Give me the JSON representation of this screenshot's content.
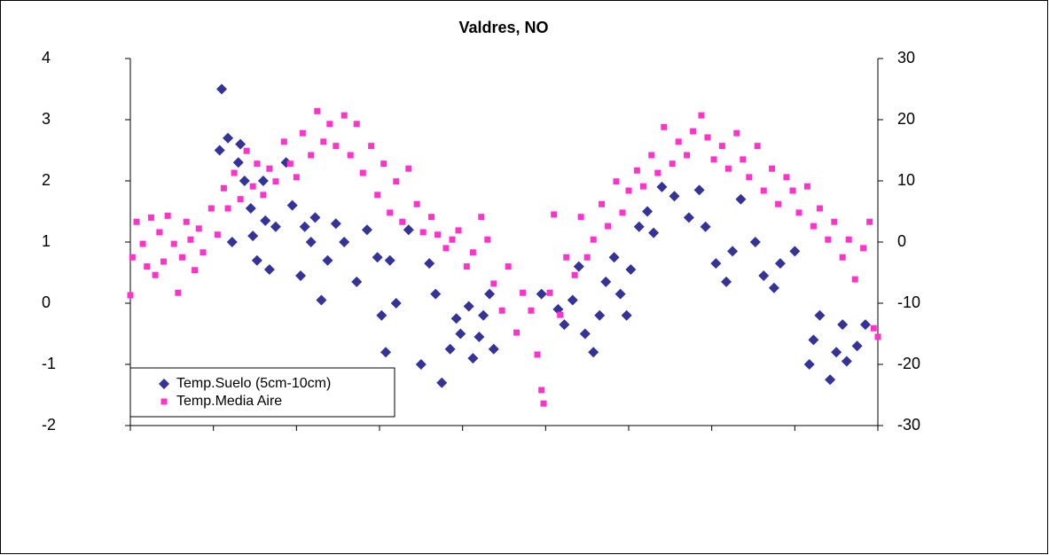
{
  "chart_data": {
    "type": "scatter",
    "title": "Valdres, NO",
    "xlim": [
      0,
      360
    ],
    "xticks": [
      0,
      40,
      80,
      120,
      160,
      200,
      240,
      280,
      320,
      360
    ],
    "ylim": [
      -2,
      4
    ],
    "yticks": [
      -2,
      -1,
      0,
      1,
      2,
      3,
      4
    ],
    "y2lim": [
      -30,
      30
    ],
    "y2ticks": [
      -30,
      -20,
      -10,
      0,
      10,
      20,
      30
    ],
    "legend": "lower left",
    "series": [
      {
        "name": "Temp.Suelo (5cm-10cm)",
        "color": "#333399",
        "marker": "diamond",
        "x": [
          43,
          44,
          47,
          49,
          52,
          53,
          55,
          58,
          59,
          61,
          64,
          65,
          67,
          70,
          75,
          78,
          82,
          84,
          87,
          89,
          92,
          95,
          99,
          103,
          109,
          114,
          119,
          121,
          123,
          125,
          128,
          134,
          140,
          144,
          147,
          150,
          154,
          157,
          159,
          163,
          165,
          168,
          170,
          173,
          175,
          198,
          206,
          209,
          213,
          216,
          219,
          223,
          226,
          229,
          233,
          236,
          239,
          241,
          245,
          249,
          252,
          256,
          262,
          269,
          274,
          277,
          282,
          287,
          290,
          294,
          301,
          305,
          310,
          313,
          320,
          327,
          329,
          332,
          337,
          340,
          343,
          345,
          350,
          354
        ],
        "values": [
          2.5,
          3.5,
          2.7,
          1.0,
          2.3,
          2.6,
          2.0,
          1.55,
          1.1,
          0.7,
          2.0,
          1.35,
          0.55,
          1.25,
          2.3,
          1.6,
          0.45,
          1.25,
          1.0,
          1.4,
          0.05,
          0.7,
          1.3,
          1.0,
          0.35,
          1.2,
          0.75,
          -0.2,
          -0.8,
          0.7,
          0.0,
          1.2,
          -1.0,
          0.65,
          0.15,
          -1.3,
          -0.75,
          -0.25,
          -0.5,
          -0.05,
          -0.9,
          -0.55,
          -0.2,
          0.15,
          -0.75,
          0.15,
          -0.1,
          -0.35,
          0.05,
          0.6,
          -0.5,
          -0.8,
          -0.2,
          0.35,
          0.75,
          0.15,
          -0.2,
          0.55,
          1.25,
          1.5,
          1.15,
          1.9,
          1.75,
          1.4,
          1.85,
          1.25,
          0.65,
          0.35,
          0.85,
          1.7,
          1.0,
          0.45,
          0.25,
          0.65,
          0.85,
          -1.0,
          -0.6,
          -0.2,
          -1.25,
          -0.8,
          -0.35,
          -0.95,
          -0.7,
          -0.35
        ]
      },
      {
        "name": "Temp.Media Aire",
        "color": "#ff33cc",
        "marker": "square",
        "axis": "y2",
        "x": [
          0,
          1,
          3,
          6,
          8,
          10,
          12,
          14,
          16,
          18,
          21,
          23,
          25,
          27,
          29,
          31,
          33,
          35,
          39,
          42,
          45,
          47,
          50,
          53,
          56,
          59,
          61,
          64,
          67,
          70,
          74,
          77,
          80,
          83,
          87,
          90,
          93,
          96,
          99,
          103,
          106,
          109,
          112,
          116,
          119,
          122,
          125,
          128,
          131,
          134,
          138,
          141,
          145,
          148,
          152,
          155,
          158,
          162,
          165,
          169,
          172,
          175,
          179,
          182,
          186,
          189,
          193,
          196,
          198,
          199,
          202,
          204,
          207,
          210,
          214,
          217,
          220,
          223,
          227,
          230,
          234,
          237,
          240,
          244,
          247,
          251,
          254,
          257,
          261,
          264,
          268,
          271,
          275,
          278,
          281,
          285,
          288,
          292,
          295,
          298,
          302,
          305,
          309,
          312,
          316,
          319,
          322,
          326,
          329,
          332,
          336,
          339,
          343,
          346,
          349,
          353,
          356,
          358,
          360
        ],
        "values": [
          -8.7,
          -2.5,
          3.3,
          -0.3,
          -4,
          4,
          -5.4,
          1.6,
          -3.2,
          4.3,
          -0.3,
          -8.3,
          -2.5,
          3.3,
          0.4,
          -4.6,
          2.2,
          -1.7,
          5.5,
          1.2,
          8.8,
          5.5,
          11.3,
          7,
          14.9,
          9.1,
          12.8,
          7.7,
          12,
          9.9,
          16.4,
          12.8,
          10.6,
          17.8,
          14.2,
          21.4,
          16.4,
          19.3,
          15.7,
          20.7,
          14.2,
          19.3,
          11.3,
          15.7,
          7.7,
          12.8,
          4.8,
          9.9,
          3.3,
          12,
          6.2,
          1.6,
          4.1,
          1.2,
          -1,
          0.4,
          1.9,
          -4,
          -1.7,
          4.1,
          0.4,
          -6.8,
          -11.2,
          -4,
          -14.8,
          -8.3,
          -11.2,
          -18.4,
          -24.2,
          -26.4,
          -8.3,
          4.5,
          -11.9,
          -2.5,
          -5.4,
          4.1,
          -2.5,
          0.4,
          6.2,
          2.6,
          9.9,
          4.8,
          8.4,
          11.7,
          9.1,
          14.2,
          11.3,
          18.8,
          12.8,
          16.4,
          14.2,
          18.1,
          20.7,
          17.1,
          13.5,
          15.7,
          12,
          17.8,
          13.5,
          10.6,
          15.7,
          8.4,
          12,
          6.2,
          10.6,
          8.4,
          4.8,
          9.1,
          2.6,
          5.5,
          0.4,
          3.3,
          -2.5,
          0.4,
          -6.1,
          -1,
          3.3,
          -14.1,
          -15.5
        ]
      }
    ]
  }
}
